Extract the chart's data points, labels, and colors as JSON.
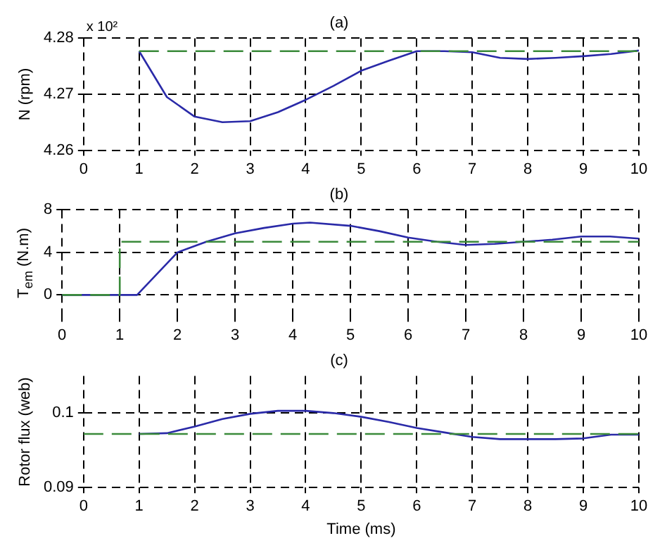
{
  "chart_data": [
    {
      "type": "line",
      "title": "(a)",
      "ylabel": "N (rpm)",
      "annotations": [
        "x 10²"
      ],
      "xlim": [
        0,
        10
      ],
      "xticks": [
        0,
        1,
        2,
        3,
        4,
        5,
        6,
        7,
        8,
        9,
        10
      ],
      "ylim": [
        4.26,
        4.28
      ],
      "yticks": [
        4.26,
        4.27,
        4.28
      ],
      "grid": true,
      "legend": false,
      "marker": "none",
      "series": [
        {
          "color": "#3a8a3a",
          "line_style": "dashed",
          "x": [
            1,
            10
          ],
          "values": [
            4.2777,
            4.2777
          ]
        },
        {
          "color": "#2a2aa8",
          "line_style": "solid",
          "x": [
            1,
            1.5,
            2,
            2.5,
            3,
            3.5,
            4,
            4.5,
            5,
            5.5,
            6,
            6.5,
            7,
            7.5,
            8,
            8.5,
            9,
            9.5,
            10
          ],
          "values": [
            4.2777,
            4.2695,
            4.266,
            4.265,
            4.2652,
            4.2668,
            4.269,
            4.2715,
            4.2742,
            4.276,
            4.2777,
            4.2777,
            4.2775,
            4.2765,
            4.2763,
            4.2765,
            4.2768,
            4.2772,
            4.2778
          ]
        }
      ]
    },
    {
      "type": "line",
      "title": "(b)",
      "ylabel": "T$_{em}$ (N.m)",
      "xlim": [
        0,
        10
      ],
      "xticks": [
        0,
        1,
        2,
        3,
        4,
        5,
        6,
        7,
        8,
        9,
        10
      ],
      "ylim": [
        -2,
        8
      ],
      "yticks": [
        0,
        4,
        8
      ],
      "grid": true,
      "legend": false,
      "marker": "none",
      "series": [
        {
          "color": "#3a8a3a",
          "line_style": "dashed",
          "x": [
            0,
            1,
            1,
            10
          ],
          "values": [
            0,
            0,
            5,
            5
          ]
        },
        {
          "color": "#2a2aa8",
          "line_style": "solid",
          "x": [
            0,
            1,
            1.3,
            2,
            2.5,
            3,
            3.5,
            4,
            4.3,
            5,
            5.5,
            6,
            6.5,
            7,
            7.5,
            8,
            8.5,
            9,
            9.5,
            10
          ],
          "values": [
            0,
            0,
            0,
            4,
            5,
            5.8,
            6.3,
            6.7,
            6.8,
            6.5,
            6,
            5.4,
            5,
            4.7,
            4.8,
            5,
            5.2,
            5.5,
            5.5,
            5.3
          ]
        }
      ]
    },
    {
      "type": "line",
      "title": "(c)",
      "xlabel": "Time (ms)",
      "ylabel": "Rotor flux (web)",
      "xlim": [
        0,
        10
      ],
      "xticks": [
        0,
        1,
        2,
        3,
        4,
        5,
        6,
        7,
        8,
        9,
        10
      ],
      "ylim": [
        0.09,
        0.105
      ],
      "yticks": [
        0.09,
        0.1
      ],
      "grid": true,
      "legend": false,
      "marker": "none",
      "series": [
        {
          "color": "#3a8a3a",
          "line_style": "dashed",
          "x": [
            0,
            10
          ],
          "values": [
            0.0972,
            0.0972
          ]
        },
        {
          "color": "#2a2aa8",
          "line_style": "solid",
          "x": [
            1,
            1.5,
            2,
            2.5,
            3,
            3.5,
            4,
            4.5,
            5,
            5.5,
            6,
            6.5,
            7,
            7.5,
            8,
            8.5,
            9,
            9.5,
            10
          ],
          "values": [
            0.0972,
            0.0973,
            0.0982,
            0.0992,
            0.0999,
            0.1003,
            0.1003,
            0.1,
            0.0995,
            0.0988,
            0.098,
            0.0974,
            0.0968,
            0.0965,
            0.0965,
            0.0965,
            0.0966,
            0.0971,
            0.0971
          ]
        }
      ]
    }
  ]
}
